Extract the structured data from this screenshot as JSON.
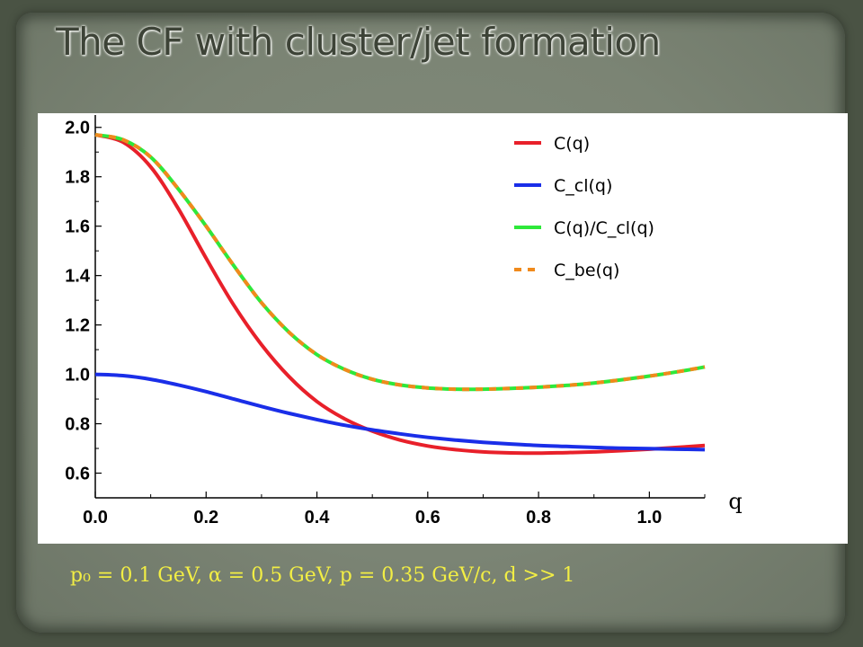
{
  "slide": {
    "title": "The CF with cluster/jet formation",
    "formula": "p₀ = 0.1 GeV, α = 0.5 GeV, p = 0.35 GeV/c, d >> 1"
  },
  "colors": {
    "title_text": "#3d4337",
    "formula_text": "#f2ee44",
    "panel_background": "#7b8474"
  },
  "chart_data": {
    "type": "line",
    "title": "",
    "xlabel": "q",
    "ylabel": "",
    "xlim": [
      0.0,
      1.1
    ],
    "ylim": [
      0.5,
      2.05
    ],
    "xticks": [
      0.0,
      0.2,
      0.4,
      0.6,
      0.8,
      1.0
    ],
    "xtick_labels": [
      "0.0",
      "0.2",
      "0.4",
      "0.6",
      "0.8",
      "1.0"
    ],
    "yticks": [
      0.6,
      0.8,
      1.0,
      1.2,
      1.4,
      1.6,
      1.8,
      2.0
    ],
    "ytick_labels": [
      "0.6",
      "0.8",
      "1.0",
      "1.2",
      "1.4",
      "1.6",
      "1.8",
      "2.0"
    ],
    "grid": false,
    "legend_position": "top-right",
    "series": [
      {
        "name": "C(q)",
        "color": "#e8202a",
        "x": [
          0.0,
          0.05,
          0.1,
          0.15,
          0.2,
          0.25,
          0.3,
          0.35,
          0.4,
          0.45,
          0.5,
          0.55,
          0.6,
          0.65,
          0.7,
          0.75,
          0.8,
          0.85,
          0.9,
          0.95,
          1.0,
          1.05,
          1.1
        ],
        "y": [
          1.97,
          1.94,
          1.84,
          1.67,
          1.47,
          1.28,
          1.12,
          0.99,
          0.89,
          0.82,
          0.77,
          0.734,
          0.71,
          0.695,
          0.686,
          0.682,
          0.681,
          0.683,
          0.686,
          0.691,
          0.697,
          0.704,
          0.712
        ]
      },
      {
        "name": "C_cl(q)",
        "color": "#1a2ee8",
        "x": [
          0.0,
          0.05,
          0.1,
          0.15,
          0.2,
          0.25,
          0.3,
          0.35,
          0.4,
          0.45,
          0.5,
          0.55,
          0.6,
          0.65,
          0.7,
          0.75,
          0.8,
          0.85,
          0.9,
          0.95,
          1.0,
          1.05,
          1.1
        ],
        "y": [
          1.0,
          0.995,
          0.98,
          0.957,
          0.93,
          0.9,
          0.87,
          0.842,
          0.817,
          0.794,
          0.775,
          0.759,
          0.745,
          0.734,
          0.725,
          0.718,
          0.712,
          0.708,
          0.704,
          0.701,
          0.699,
          0.697,
          0.695
        ]
      },
      {
        "name": "C(q)/C_cl(q)",
        "color": "#2ee83a",
        "x": [
          0.0,
          0.05,
          0.1,
          0.15,
          0.2,
          0.25,
          0.3,
          0.35,
          0.4,
          0.45,
          0.5,
          0.55,
          0.6,
          0.65,
          0.7,
          0.75,
          0.8,
          0.85,
          0.9,
          0.95,
          1.0,
          1.05,
          1.1
        ],
        "y": [
          1.97,
          1.95,
          1.88,
          1.75,
          1.6,
          1.44,
          1.29,
          1.17,
          1.08,
          1.02,
          0.98,
          0.957,
          0.945,
          0.94,
          0.94,
          0.943,
          0.948,
          0.955,
          0.965,
          0.978,
          0.993,
          1.01,
          1.03
        ]
      },
      {
        "name": "C_be(q)",
        "color": "#f08a1c",
        "x": [
          0.0,
          0.05,
          0.1,
          0.15,
          0.2,
          0.25,
          0.3,
          0.35,
          0.4,
          0.45,
          0.5,
          0.55,
          0.6,
          0.65,
          0.7,
          0.75,
          0.8,
          0.85,
          0.9,
          0.95,
          1.0,
          1.05,
          1.1
        ],
        "y": [
          1.97,
          1.95,
          1.88,
          1.75,
          1.6,
          1.44,
          1.29,
          1.17,
          1.08,
          1.02,
          0.98,
          0.957,
          0.945,
          0.94,
          0.94,
          0.943,
          0.948,
          0.955,
          0.965,
          0.978,
          0.993,
          1.01,
          1.03
        ],
        "dashed": true
      }
    ]
  }
}
